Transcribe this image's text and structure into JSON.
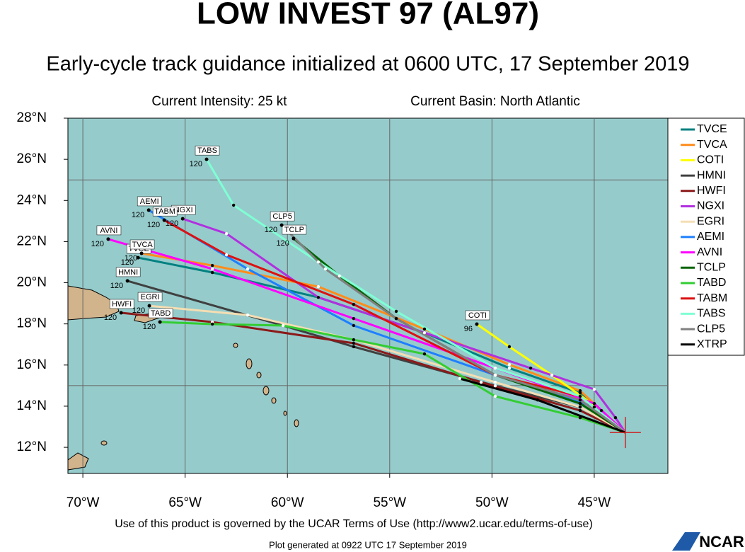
{
  "map": {
    "title": "LOW INVEST 97 (AL97)",
    "subtitle": "Early-cycle track guidance initialized at 0600 UTC, 17 September 2019",
    "current_intensity": "Current Intensity: 25 kt",
    "current_basin": "Current Basin: North Atlantic",
    "xlim": [
      -70.73,
      -41.4
    ],
    "ylim": [
      10.73,
      28
    ],
    "xticks": [
      {
        "value": -70,
        "label": "70°W"
      },
      {
        "value": -65,
        "label": "65°W"
      },
      {
        "value": -60,
        "label": "60°W"
      },
      {
        "value": -55,
        "label": "55°W"
      },
      {
        "value": -50,
        "label": "50°W"
      },
      {
        "value": -45,
        "label": "45°W"
      }
    ],
    "yticks": [
      {
        "value": 12,
        "label": "12°N"
      },
      {
        "value": 14,
        "label": "14°N"
      },
      {
        "value": 16,
        "label": "16°N"
      },
      {
        "value": 18,
        "label": "18°N"
      },
      {
        "value": 20,
        "label": "20°N"
      },
      {
        "value": 22,
        "label": "22°N"
      },
      {
        "value": 24,
        "label": "24°N"
      },
      {
        "value": 26,
        "label": "26°N"
      },
      {
        "value": 28,
        "label": "28°N"
      }
    ],
    "lat_grid": [
      15,
      25
    ],
    "start": {
      "lon": -43.48,
      "lat": 12.72
    },
    "tracks": [
      {
        "name": "TVCE",
        "color": "#008080",
        "end_hour": 120,
        "lon": [
          -43.48,
          -45.69,
          -49.15,
          -53.3,
          -58.49,
          -63.67,
          -67.3
        ],
        "lat": [
          12.72,
          14.65,
          15.85,
          17.57,
          19.29,
          20.5,
          21.22
        ]
      },
      {
        "name": "TVCA",
        "color": "#ff8c1a",
        "end_hour": 120,
        "lon": [
          -43.48,
          -45.69,
          -49.15,
          -53.3,
          -58.49,
          -63.67,
          -67.13
        ],
        "lat": [
          12.72,
          14.75,
          16.02,
          17.75,
          19.81,
          20.84,
          21.43
        ]
      },
      {
        "name": "COTI",
        "color": "#ffff00",
        "end_hour": 96,
        "lon": [
          -43.48,
          -44.65,
          -47.07,
          -49.15,
          -50.74
        ],
        "lat": [
          12.72,
          13.79,
          15.51,
          16.89,
          17.99
        ]
      },
      {
        "name": "HMNI",
        "color": "#404040",
        "end_hour": 120,
        "lon": [
          -43.48,
          -45.69,
          -49.84,
          -56.76,
          -60.21,
          -67.82
        ],
        "lat": [
          12.72,
          13.96,
          14.99,
          16.89,
          17.92,
          20.09
        ]
      },
      {
        "name": "HWFI",
        "color": "#8b1a1a",
        "end_hour": 120,
        "lon": [
          -43.48,
          -45.69,
          -50.53,
          -56.76,
          -63.67,
          -68.13
        ],
        "lat": [
          12.72,
          13.79,
          15.16,
          17.06,
          18.09,
          18.54
        ]
      },
      {
        "name": "NGXI",
        "color": "#b030e0",
        "end_hour": 120,
        "lon": [
          -43.48,
          -43.96,
          -45.0,
          -48.11,
          -53.3,
          -58.49,
          -62.98,
          -65.12
        ],
        "lat": [
          12.72,
          13.44,
          14.82,
          15.85,
          17.57,
          19.29,
          22.39,
          23.11
        ]
      },
      {
        "name": "EGRI",
        "color": "#f5deb3",
        "end_hour": 120,
        "lon": [
          -43.48,
          -45.69,
          -49.84,
          -56.76,
          -61.94,
          -66.75
        ],
        "lat": [
          12.72,
          13.96,
          15.16,
          17.23,
          18.43,
          18.88
        ]
      },
      {
        "name": "AEMI",
        "color": "#1e7fff",
        "end_hour": 120,
        "lon": [
          -43.48,
          -45.0,
          -49.84,
          -56.76,
          -61.94,
          -66.78
        ],
        "lat": [
          12.72,
          13.96,
          15.51,
          17.92,
          20.67,
          23.53
        ]
      },
      {
        "name": "AVNI",
        "color": "#ff00ff",
        "end_hour": 120,
        "lon": [
          -43.48,
          -45.0,
          -49.84,
          -56.76,
          -63.67,
          -68.76
        ],
        "lat": [
          12.72,
          14.13,
          15.85,
          18.26,
          20.67,
          22.12
        ]
      },
      {
        "name": "TCLP",
        "color": "#006400",
        "end_hour": 120,
        "lon": [
          -43.48,
          -45.69,
          -49.84,
          -54.68,
          -57.45,
          -59.7
        ],
        "lat": [
          12.72,
          14.13,
          15.51,
          18.26,
          20.33,
          22.15
        ]
      },
      {
        "name": "TABD",
        "color": "#32cd32",
        "end_hour": 120,
        "lon": [
          -43.48,
          -45.69,
          -49.84,
          -53.3,
          -60.21,
          -63.67,
          -66.23
        ],
        "lat": [
          12.72,
          13.44,
          14.48,
          16.54,
          17.92,
          17.99,
          18.09
        ]
      },
      {
        "name": "TABM",
        "color": "#dd1111",
        "end_hour": 120,
        "lon": [
          -43.48,
          -45.69,
          -49.84,
          -56.76,
          -62.98,
          -66.02
        ],
        "lat": [
          12.72,
          14.48,
          15.51,
          18.95,
          21.36,
          23.04
        ]
      },
      {
        "name": "TABS",
        "color": "#7fffd4",
        "end_hour": 120,
        "lon": [
          -43.48,
          -45.69,
          -49.84,
          -54.68,
          -58.49,
          -62.63,
          -63.95
        ],
        "lat": [
          12.72,
          14.48,
          15.85,
          18.61,
          21.01,
          23.77,
          26.0
        ]
      },
      {
        "name": "CLP5",
        "color": "#808080",
        "end_hour": 120,
        "lon": [
          -43.48,
          -45.69,
          -49.84,
          -54.68,
          -58.14,
          -60.28
        ],
        "lat": [
          12.72,
          14.3,
          15.51,
          18.26,
          20.67,
          22.8
        ]
      },
      {
        "name": "XTRP",
        "color": "#000000",
        "lon": [
          -43.48,
          -47.77,
          -51.57
        ],
        "lat": [
          12.72,
          14.3,
          15.34
        ]
      }
    ],
    "terms": "Use of this product is governed by the UCAR Terms of Use (http://www2.ucar.edu/terms-of-use)",
    "generated": "Plot generated at 0922 UTC   17 September 2019",
    "logo": "NCAR"
  }
}
